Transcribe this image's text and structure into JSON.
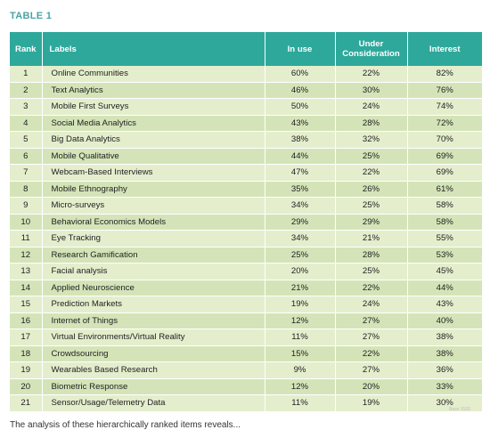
{
  "title": "TABLE 1",
  "headers": {
    "rank": "Rank",
    "labels": "Labels",
    "in_use": "In use",
    "under_consideration": "Under Consideration",
    "interest": "Interest"
  },
  "rows": [
    {
      "rank": "1",
      "label": "Online Communities",
      "in_use": "60%",
      "under": "22%",
      "interest": "82%"
    },
    {
      "rank": "2",
      "label": "Text Analytics",
      "in_use": "46%",
      "under": "30%",
      "interest": "76%"
    },
    {
      "rank": "3",
      "label": "Mobile First Surveys",
      "in_use": "50%",
      "under": "24%",
      "interest": "74%"
    },
    {
      "rank": "4",
      "label": "Social Media Analytics",
      "in_use": "43%",
      "under": "28%",
      "interest": "72%"
    },
    {
      "rank": "5",
      "label": "Big Data Analytics",
      "in_use": "38%",
      "under": "32%",
      "interest": "70%"
    },
    {
      "rank": "6",
      "label": "Mobile Qualitative",
      "in_use": "44%",
      "under": "25%",
      "interest": "69%"
    },
    {
      "rank": "7",
      "label": "Webcam-Based Interviews",
      "in_use": "47%",
      "under": "22%",
      "interest": "69%"
    },
    {
      "rank": "8",
      "label": "Mobile Ethnography",
      "in_use": "35%",
      "under": "26%",
      "interest": "61%"
    },
    {
      "rank": "9",
      "label": "Micro-surveys",
      "in_use": "34%",
      "under": "25%",
      "interest": "58%"
    },
    {
      "rank": "10",
      "label": "Behavioral Economics Models",
      "in_use": "29%",
      "under": "29%",
      "interest": "58%"
    },
    {
      "rank": "11",
      "label": "Eye Tracking",
      "in_use": "34%",
      "under": "21%",
      "interest": "55%"
    },
    {
      "rank": "12",
      "label": "Research Gamification",
      "in_use": "25%",
      "under": "28%",
      "interest": "53%"
    },
    {
      "rank": "13",
      "label": "Facial analysis",
      "in_use": "20%",
      "under": "25%",
      "interest": "45%"
    },
    {
      "rank": "14",
      "label": "Applied Neuroscience",
      "in_use": "21%",
      "under": "22%",
      "interest": "44%"
    },
    {
      "rank": "15",
      "label": "Prediction Markets",
      "in_use": "19%",
      "under": "24%",
      "interest": "43%"
    },
    {
      "rank": "16",
      "label": "Internet of Things",
      "in_use": "12%",
      "under": "27%",
      "interest": "40%"
    },
    {
      "rank": "17",
      "label": "Virtual Environments/Virtual Reality",
      "in_use": "11%",
      "under": "27%",
      "interest": "38%"
    },
    {
      "rank": "18",
      "label": "Crowdsourcing",
      "in_use": "15%",
      "under": "22%",
      "interest": "38%"
    },
    {
      "rank": "19",
      "label": "Wearables Based Research",
      "in_use": "9%",
      "under": "27%",
      "interest": "36%"
    },
    {
      "rank": "20",
      "label": "Biometric Response",
      "in_use": "12%",
      "under": "20%",
      "interest": "33%"
    },
    {
      "rank": "21",
      "label": "Sensor/Usage/Telemetry Data",
      "in_use": "11%",
      "under": "19%",
      "interest": "30%"
    }
  ],
  "source_note": "Base 1520",
  "footer_text": "The analysis of these hierarchically ranked items reveals...",
  "colors": {
    "header_bg": "#2ea89b",
    "row_light": "#e4eecd",
    "row_dark": "#d4e4b8",
    "title": "#4aa3a3"
  }
}
